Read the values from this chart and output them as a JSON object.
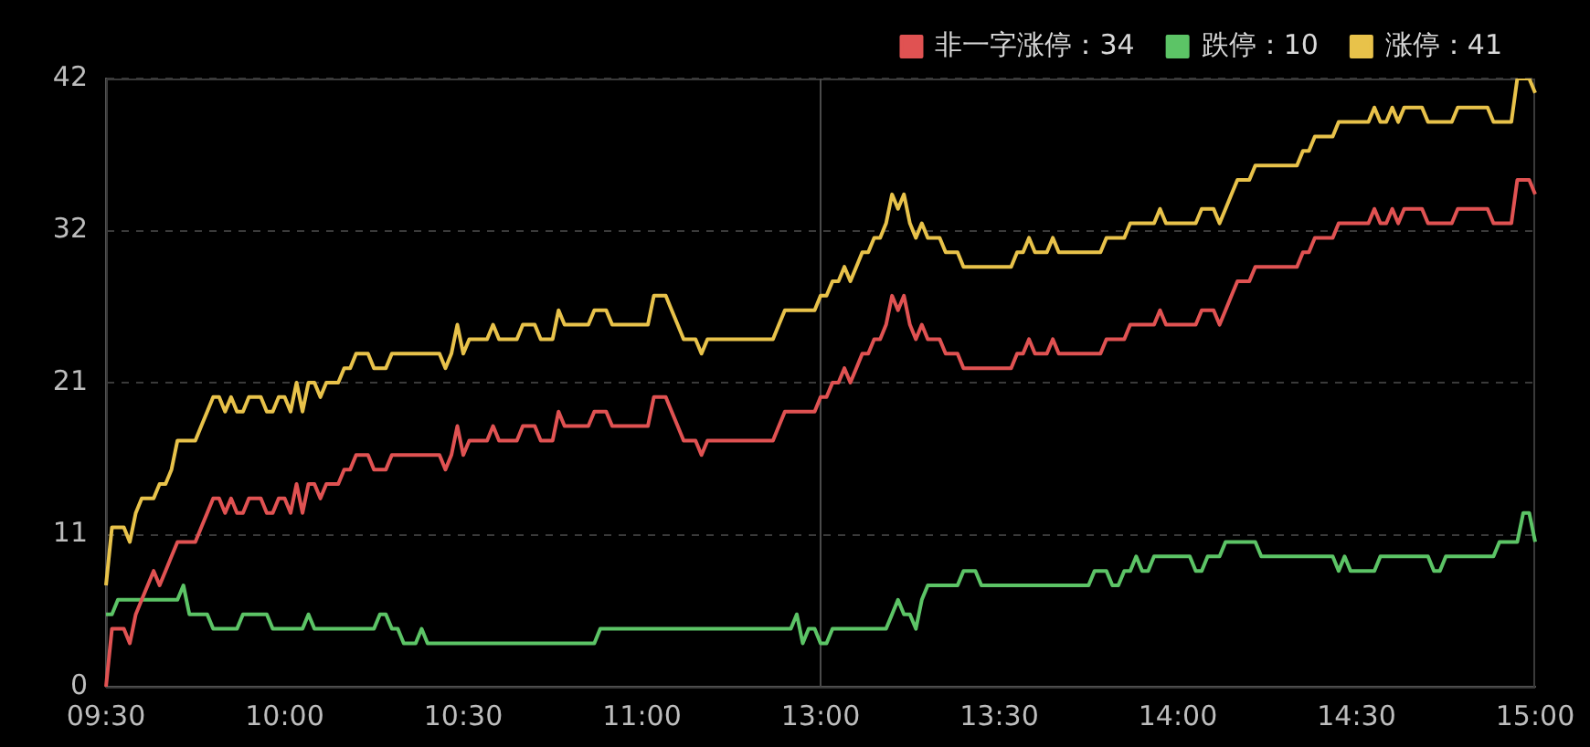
{
  "chart_data": {
    "type": "line",
    "categories": [
      "09:30",
      null,
      null,
      null,
      null,
      null,
      null,
      null,
      null,
      null,
      null,
      null,
      null,
      null,
      null,
      null,
      null,
      null,
      null,
      null,
      null,
      null,
      null,
      null,
      null,
      null,
      null,
      null,
      null,
      null,
      "10:00",
      null,
      null,
      null,
      null,
      null,
      null,
      null,
      null,
      null,
      null,
      null,
      null,
      null,
      null,
      null,
      null,
      null,
      null,
      null,
      null,
      null,
      null,
      null,
      null,
      null,
      null,
      null,
      null,
      null,
      "10:30",
      null,
      null,
      null,
      null,
      null,
      null,
      null,
      null,
      null,
      null,
      null,
      null,
      null,
      null,
      null,
      null,
      null,
      null,
      null,
      null,
      null,
      null,
      null,
      null,
      null,
      null,
      null,
      null,
      null,
      "11:00",
      null,
      null,
      null,
      null,
      null,
      null,
      null,
      null,
      null,
      null,
      null,
      null,
      null,
      null,
      null,
      null,
      null,
      null,
      null,
      null,
      null,
      null,
      null,
      null,
      null,
      null,
      null,
      null,
      null,
      "13:00",
      null,
      null,
      null,
      null,
      null,
      null,
      null,
      null,
      null,
      null,
      null,
      null,
      null,
      null,
      null,
      null,
      null,
      null,
      null,
      null,
      null,
      null,
      null,
      null,
      null,
      null,
      null,
      null,
      null,
      "13:30",
      null,
      null,
      null,
      null,
      null,
      null,
      null,
      null,
      null,
      null,
      null,
      null,
      null,
      null,
      null,
      null,
      null,
      null,
      null,
      null,
      null,
      null,
      null,
      null,
      null,
      null,
      null,
      null,
      null,
      "14:00",
      null,
      null,
      null,
      null,
      null,
      null,
      null,
      null,
      null,
      null,
      null,
      null,
      null,
      null,
      null,
      null,
      null,
      null,
      null,
      null,
      null,
      null,
      null,
      null,
      null,
      null,
      null,
      null,
      null,
      "14:30",
      null,
      null,
      null,
      null,
      null,
      null,
      null,
      null,
      null,
      null,
      null,
      null,
      null,
      null,
      null,
      null,
      null,
      null,
      null,
      null,
      null,
      null,
      null,
      null,
      null,
      null,
      null,
      null,
      null,
      "15:00"
    ],
    "ylim": [
      0,
      42
    ],
    "yticks": [
      0,
      {
        "value": 10.5,
        "label": "11"
      },
      21,
      {
        "value": 31.5,
        "label": "32"
      },
      42
    ],
    "grid": "y",
    "legend": "top right",
    "marker": "none",
    "line_style": "solid",
    "ref_lines": [
      {
        "axis": "x",
        "value": "13:00",
        "color": "#4a4a4a"
      }
    ],
    "series": [
      {
        "name": "非一字涨停：34",
        "color": "#e05252",
        "values": [
          0,
          4,
          4,
          4,
          3,
          5,
          6,
          7,
          8,
          7,
          8,
          9,
          10,
          10,
          10,
          10,
          11,
          12,
          13,
          13,
          12,
          13,
          12,
          12,
          13,
          13,
          13,
          12,
          12,
          13,
          13,
          12,
          14,
          12,
          14,
          14,
          13,
          14,
          14,
          14,
          15,
          15,
          16,
          16,
          16,
          15,
          15,
          15,
          16,
          16,
          16,
          16,
          16,
          16,
          16,
          16,
          16,
          15,
          16,
          18,
          16,
          17,
          17,
          17,
          17,
          18,
          17,
          17,
          17,
          17,
          18,
          18,
          18,
          17,
          17,
          17,
          19,
          18,
          18,
          18,
          18,
          18,
          19,
          19,
          19,
          18,
          18,
          18,
          18,
          18,
          18,
          18,
          20,
          20,
          20,
          19,
          18,
          17,
          17,
          17,
          16,
          17,
          17,
          17,
          17,
          17,
          17,
          17,
          17,
          17,
          17,
          17,
          17,
          18,
          19,
          19,
          19,
          19,
          19,
          19,
          20,
          20,
          21,
          21,
          22,
          21,
          22,
          23,
          23,
          24,
          24,
          25,
          27,
          26,
          27,
          25,
          24,
          25,
          24,
          24,
          24,
          23,
          23,
          23,
          22,
          22,
          22,
          22,
          22,
          22,
          22,
          22,
          22,
          23,
          23,
          24,
          23,
          23,
          23,
          24,
          23,
          23,
          23,
          23,
          23,
          23,
          23,
          23,
          24,
          24,
          24,
          24,
          25,
          25,
          25,
          25,
          25,
          26,
          25,
          25,
          25,
          25,
          25,
          25,
          26,
          26,
          26,
          25,
          26,
          27,
          28,
          28,
          28,
          29,
          29,
          29,
          29,
          29,
          29,
          29,
          29,
          30,
          30,
          31,
          31,
          31,
          31,
          32,
          32,
          32,
          32,
          32,
          32,
          33,
          32,
          32,
          33,
          32,
          33,
          33,
          33,
          33,
          32,
          32,
          32,
          32,
          32,
          33,
          33,
          33,
          33,
          33,
          33,
          32,
          32,
          32,
          32,
          35,
          35,
          35,
          34
        ]
      },
      {
        "name": "跌停：10",
        "color": "#5cc466",
        "values": [
          5,
          5,
          6,
          6,
          6,
          6,
          6,
          6,
          6,
          6,
          6,
          6,
          6,
          7,
          5,
          5,
          5,
          5,
          4,
          4,
          4,
          4,
          4,
          5,
          5,
          5,
          5,
          5,
          4,
          4,
          4,
          4,
          4,
          4,
          5,
          4,
          4,
          4,
          4,
          4,
          4,
          4,
          4,
          4,
          4,
          4,
          5,
          5,
          4,
          4,
          3,
          3,
          3,
          4,
          3,
          3,
          3,
          3,
          3,
          3,
          3,
          3,
          3,
          3,
          3,
          3,
          3,
          3,
          3,
          3,
          3,
          3,
          3,
          3,
          3,
          3,
          3,
          3,
          3,
          3,
          3,
          3,
          3,
          4,
          4,
          4,
          4,
          4,
          4,
          4,
          4,
          4,
          4,
          4,
          4,
          4,
          4,
          4,
          4,
          4,
          4,
          4,
          4,
          4,
          4,
          4,
          4,
          4,
          4,
          4,
          4,
          4,
          4,
          4,
          4,
          4,
          5,
          3,
          4,
          4,
          3,
          3,
          4,
          4,
          4,
          4,
          4,
          4,
          4,
          4,
          4,
          4,
          5,
          6,
          5,
          5,
          4,
          6,
          7,
          7,
          7,
          7,
          7,
          7,
          8,
          8,
          8,
          7,
          7,
          7,
          7,
          7,
          7,
          7,
          7,
          7,
          7,
          7,
          7,
          7,
          7,
          7,
          7,
          7,
          7,
          7,
          8,
          8,
          8,
          7,
          7,
          8,
          8,
          9,
          8,
          8,
          9,
          9,
          9,
          9,
          9,
          9,
          9,
          8,
          8,
          9,
          9,
          9,
          10,
          10,
          10,
          10,
          10,
          10,
          9,
          9,
          9,
          9,
          9,
          9,
          9,
          9,
          9,
          9,
          9,
          9,
          9,
          8,
          9,
          8,
          8,
          8,
          8,
          8,
          9,
          9,
          9,
          9,
          9,
          9,
          9,
          9,
          9,
          8,
          8,
          9,
          9,
          9,
          9,
          9,
          9,
          9,
          9,
          9,
          10,
          10,
          10,
          10,
          12,
          12,
          10
        ]
      },
      {
        "name": "涨停：41",
        "color": "#e8c24a",
        "values": [
          7,
          11,
          11,
          11,
          10,
          12,
          13,
          13,
          13,
          14,
          14,
          15,
          17,
          17,
          17,
          17,
          18,
          19,
          20,
          20,
          19,
          20,
          19,
          19,
          20,
          20,
          20,
          19,
          19,
          20,
          20,
          19,
          21,
          19,
          21,
          21,
          20,
          21,
          21,
          21,
          22,
          22,
          23,
          23,
          23,
          22,
          22,
          22,
          23,
          23,
          23,
          23,
          23,
          23,
          23,
          23,
          23,
          22,
          23,
          25,
          23,
          24,
          24,
          24,
          24,
          25,
          24,
          24,
          24,
          24,
          25,
          25,
          25,
          24,
          24,
          24,
          26,
          25,
          25,
          25,
          25,
          25,
          26,
          26,
          26,
          25,
          25,
          25,
          25,
          25,
          25,
          25,
          27,
          27,
          27,
          26,
          25,
          24,
          24,
          24,
          23,
          24,
          24,
          24,
          24,
          24,
          24,
          24,
          24,
          24,
          24,
          24,
          24,
          25,
          26,
          26,
          26,
          26,
          26,
          26,
          27,
          27,
          28,
          28,
          29,
          28,
          29,
          30,
          30,
          31,
          31,
          32,
          34,
          33,
          34,
          32,
          31,
          32,
          31,
          31,
          31,
          30,
          30,
          30,
          29,
          29,
          29,
          29,
          29,
          29,
          29,
          29,
          29,
          30,
          30,
          31,
          30,
          30,
          30,
          31,
          30,
          30,
          30,
          30,
          30,
          30,
          30,
          30,
          31,
          31,
          31,
          31,
          32,
          32,
          32,
          32,
          32,
          33,
          32,
          32,
          32,
          32,
          32,
          32,
          33,
          33,
          33,
          32,
          33,
          34,
          35,
          35,
          35,
          36,
          36,
          36,
          36,
          36,
          36,
          36,
          36,
          37,
          37,
          38,
          38,
          38,
          38,
          39,
          39,
          39,
          39,
          39,
          39,
          40,
          39,
          39,
          40,
          39,
          40,
          40,
          40,
          40,
          39,
          39,
          39,
          39,
          39,
          40,
          40,
          40,
          40,
          40,
          40,
          39,
          39,
          39,
          39,
          42,
          42,
          42,
          41
        ]
      }
    ]
  }
}
